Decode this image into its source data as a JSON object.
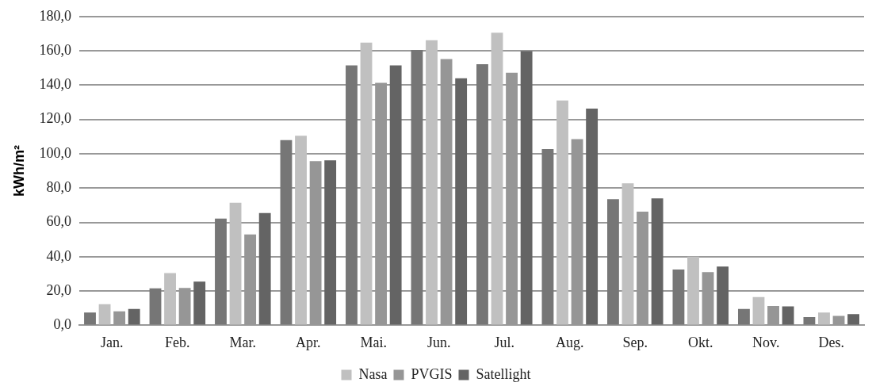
{
  "chart_data": {
    "type": "bar",
    "ylabel": "kWh/m²",
    "categories": [
      "Jan.",
      "Feb.",
      "Mar.",
      "Apr.",
      "Mai.",
      "Jun.",
      "Jul.",
      "Aug.",
      "Sep.",
      "Okt.",
      "Nov.",
      "Des."
    ],
    "series": [
      {
        "color": "#767676",
        "values": [
          7.5,
          21.5,
          62.2,
          108,
          151.5,
          160.5,
          152.2,
          102.8,
          73.5,
          32.5,
          9.5,
          4.8
        ]
      },
      {
        "name": "Nasa",
        "color": "#c0c0c0",
        "values": [
          12.3,
          30.5,
          71.5,
          110.5,
          164.8,
          166.2,
          170.5,
          131,
          82.8,
          40,
          16.5,
          7.5
        ]
      },
      {
        "name": "PVGIS",
        "color": "#969696",
        "values": [
          8.2,
          21.8,
          53,
          95.7,
          141.3,
          155.2,
          147.2,
          108.5,
          66.2,
          31,
          11.3,
          5.5
        ]
      },
      {
        "name": "Satellight",
        "color": "#646464",
        "values": [
          9.5,
          25.5,
          65.5,
          96.2,
          151.5,
          144,
          159.8,
          126.3,
          74,
          34.3,
          11,
          6.5
        ]
      }
    ],
    "ylim": [
      0,
      180
    ],
    "yticks": [
      {
        "value": 0,
        "label": "0,0"
      },
      {
        "value": 20,
        "label": "20,0"
      },
      {
        "value": 40,
        "label": "40,0"
      },
      {
        "value": 60,
        "label": "60,0"
      },
      {
        "value": 80,
        "label": "80,0"
      },
      {
        "value": 100,
        "label": "100,0"
      },
      {
        "value": 120,
        "label": "120,0"
      },
      {
        "value": 140,
        "label": "140,0"
      },
      {
        "value": 160,
        "label": "160,0"
      },
      {
        "value": 180,
        "label": "180,0"
      }
    ],
    "grid": "y",
    "legend": "bottom"
  }
}
